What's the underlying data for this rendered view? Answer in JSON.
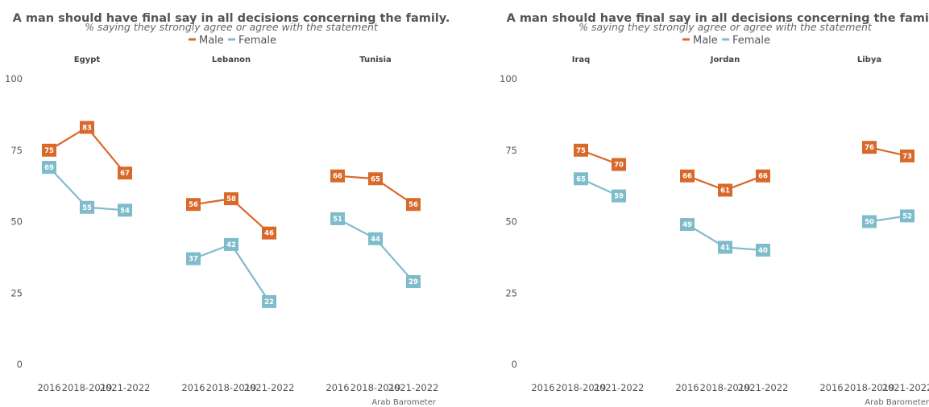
{
  "colors": {
    "male": "#d9692a",
    "female": "#7fbccb"
  },
  "chart_data": [
    {
      "type": "line",
      "title": "A man should have final say in all decisions concerning the family.",
      "subtitle": "% saying they strongly agree or agree with the statement",
      "legend": [
        "Male",
        "Female"
      ],
      "legend_placement": "top",
      "caption": "Arab Barometer",
      "x": [
        "2016",
        "2018-2019",
        "2021-2022"
      ],
      "y_ticks": [
        "0",
        "25",
        "50",
        "75",
        "100"
      ],
      "ylim": [
        0,
        100
      ],
      "facets": [
        {
          "name": "Egypt",
          "series": [
            {
              "name": "Male",
              "values": [
                75,
                83,
                67
              ]
            },
            {
              "name": "Female",
              "values": [
                69,
                55,
                54
              ]
            }
          ]
        },
        {
          "name": "Lebanon",
          "series": [
            {
              "name": "Male",
              "values": [
                56,
                58,
                46
              ]
            },
            {
              "name": "Female",
              "values": [
                37,
                42,
                22
              ]
            }
          ]
        },
        {
          "name": "Tunisia",
          "series": [
            {
              "name": "Male",
              "values": [
                66,
                65,
                56
              ]
            },
            {
              "name": "Female",
              "values": [
                51,
                44,
                29
              ]
            }
          ]
        }
      ]
    },
    {
      "type": "line",
      "title": "A man should have final say in all decisions concerning the family.",
      "subtitle": "% saying they strongly agree or agree with the statement",
      "legend": [
        "Male",
        "Female"
      ],
      "legend_placement": "top",
      "caption": "Arab Barometer",
      "x": [
        "2016",
        "2018-2019",
        "2021-2022"
      ],
      "y_ticks": [
        "0",
        "25",
        "50",
        "75",
        "100"
      ],
      "ylim": [
        0,
        100
      ],
      "facets": [
        {
          "name": "Iraq",
          "series": [
            {
              "name": "Male",
              "values": [
                null,
                75,
                70
              ]
            },
            {
              "name": "Female",
              "values": [
                null,
                65,
                59
              ]
            }
          ]
        },
        {
          "name": "Jordan",
          "series": [
            {
              "name": "Male",
              "values": [
                66,
                61,
                66
              ]
            },
            {
              "name": "Female",
              "values": [
                49,
                41,
                40
              ]
            }
          ]
        },
        {
          "name": "Libya",
          "series": [
            {
              "name": "Male",
              "values": [
                null,
                76,
                73
              ]
            },
            {
              "name": "Female",
              "values": [
                null,
                50,
                52
              ]
            }
          ]
        }
      ]
    }
  ]
}
